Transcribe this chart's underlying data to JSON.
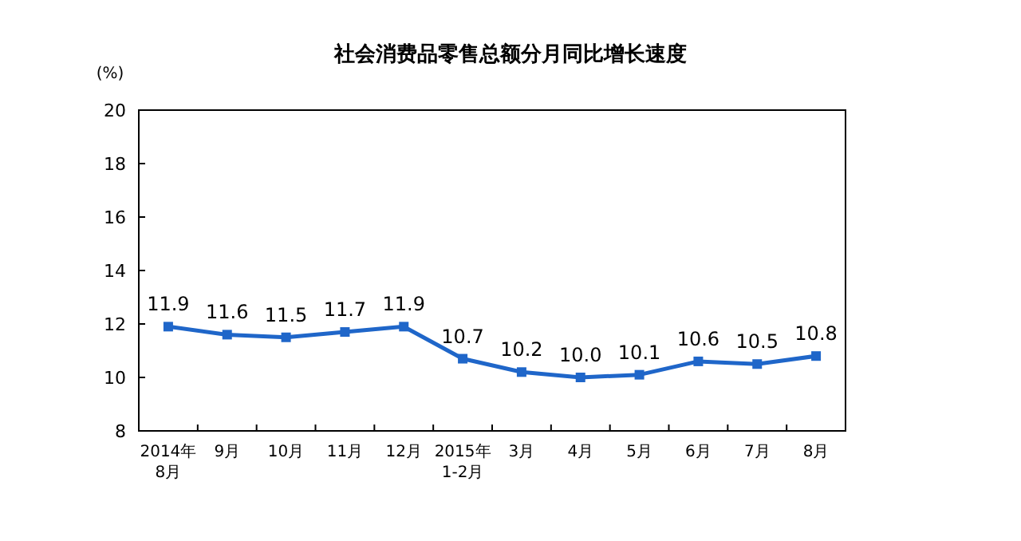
{
  "chart_data": {
    "type": "line",
    "title": "社会消费品零售总额分月同比增长速度",
    "ylabel": "(%)",
    "categories": [
      "2014年\n8月",
      "9月",
      "10月",
      "11月",
      "12月",
      "2015年\n1-2月",
      "3月",
      "4月",
      "5月",
      "6月",
      "7月",
      "8月"
    ],
    "series": [
      {
        "color": "#1f66c9",
        "values": [
          11.9,
          11.6,
          11.5,
          11.7,
          11.9,
          10.7,
          10.2,
          10.0,
          10.1,
          10.6,
          10.5,
          10.8
        ],
        "value_labels": [
          "11.9",
          "11.6",
          "11.5",
          "11.7",
          "11.9",
          "10.7",
          "10.2",
          "10.0",
          "10.1",
          "10.6",
          "10.5",
          "10.8"
        ]
      }
    ],
    "ylim": [
      8,
      20
    ],
    "yticks": [
      8,
      10,
      12,
      14,
      16,
      18,
      20
    ],
    "grid": false,
    "marker": "square",
    "line_style": "solid"
  }
}
